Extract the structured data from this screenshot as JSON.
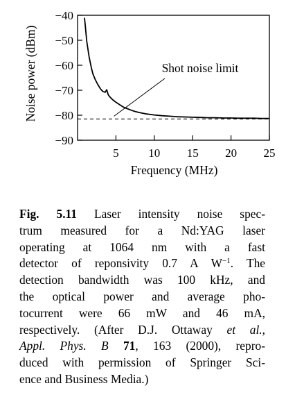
{
  "chart_data": {
    "type": "line",
    "xlabel": "Frequency (MHz)",
    "ylabel": "Noise power (dBm)",
    "xlim": [
      0,
      25
    ],
    "ylim": [
      -90,
      -40
    ],
    "x_ticks": [
      5,
      10,
      15,
      20,
      25
    ],
    "y_ticks": [
      -40,
      -50,
      -60,
      -70,
      -80,
      -90
    ],
    "series": [
      {
        "style": "solid",
        "color": "#000000",
        "x": [
          0.9,
          1.0,
          1.2,
          1.5,
          1.8,
          2.0,
          2.3,
          2.6,
          3.0,
          3.3,
          3.6,
          3.8,
          4.0,
          4.2,
          4.5,
          5.0,
          5.5,
          6.0,
          6.5,
          7.0,
          7.5,
          8.0,
          9.0,
          10.0,
          11.0,
          12.0,
          13.0,
          14.0,
          15.0,
          16.0,
          17.0,
          18.0,
          19.0,
          20.0,
          21.0,
          22.0,
          23.0,
          24.0,
          25.0
        ],
        "y": [
          -41,
          -44,
          -50.5,
          -56.5,
          -61,
          -63.5,
          -65.7,
          -67.5,
          -69.5,
          -70.5,
          -70.8,
          -69.8,
          -71.8,
          -72.6,
          -73.6,
          -74.8,
          -75.8,
          -76.8,
          -77.4,
          -78.0,
          -78.5,
          -78.9,
          -79.5,
          -79.9,
          -80.2,
          -80.4,
          -80.6,
          -80.7,
          -80.8,
          -80.9,
          -81.0,
          -81.0,
          -81.1,
          -81.1,
          -81.2,
          -81.2,
          -81.2,
          -81.3,
          -81.3
        ]
      },
      {
        "name": "Shot noise limit",
        "style": "dashed",
        "color": "#000000",
        "x": [
          0,
          25
        ],
        "y": [
          -81.5,
          -81.5
        ]
      }
    ],
    "annotations": [
      {
        "text": "Shot noise limit",
        "target_x": 8.0,
        "target_y": -81.5
      }
    ],
    "grid": false
  },
  "caption": {
    "label": "Fig. 5.11",
    "lines": [
      {
        "parts": [
          {
            "text": "Fig. 5.11",
            "style": "label"
          },
          {
            "text": " Laser intensity noise spec-"
          }
        ]
      },
      {
        "parts": [
          {
            "text": "trum measured for a Nd:YAG laser"
          }
        ]
      },
      {
        "parts": [
          {
            "text": "operating at 1064 nm with a fast"
          }
        ]
      },
      {
        "parts": [
          {
            "text": "detector of reponsivity 0.7 A W"
          },
          {
            "text": "−1",
            "style": "sup"
          },
          {
            "text": ". The"
          }
        ]
      },
      {
        "parts": [
          {
            "text": "detection bandwidth was 100 kHz, and"
          }
        ]
      },
      {
        "parts": [
          {
            "text": "the optical power and average pho-"
          }
        ]
      },
      {
        "parts": [
          {
            "text": "tocurrent were 66 mW and 46 mA,"
          }
        ]
      },
      {
        "parts": [
          {
            "text": "respectively. (After D.J. Ottaway "
          },
          {
            "text": "et al.",
            "style": "italic"
          },
          {
            "text": ","
          }
        ]
      },
      {
        "parts": [
          {
            "text": "Appl. Phys. B",
            "style": "italic"
          },
          {
            "text": " "
          },
          {
            "text": "71",
            "style": "bold"
          },
          {
            "text": ", 163 (2000), repro-"
          }
        ]
      },
      {
        "parts": [
          {
            "text": "duced with permission of Springer Sci-"
          }
        ]
      },
      {
        "parts": [
          {
            "text": "ence and Business Media.)"
          }
        ]
      }
    ]
  }
}
